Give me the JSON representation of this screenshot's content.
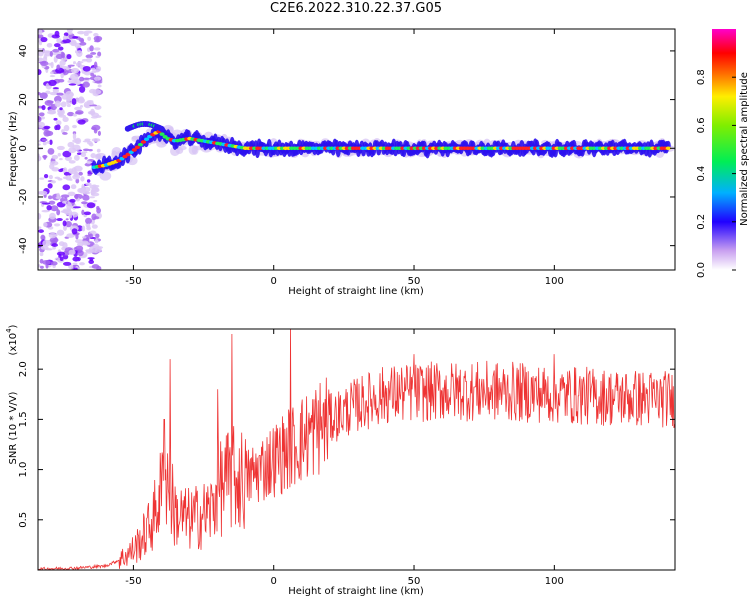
{
  "title": "C2E6.2022.310.22.37.G05",
  "chart_data": [
    {
      "type": "heatmap",
      "xlabel": "Height of straight line (km)",
      "ylabel": "Frequency (Hz)",
      "xlim": [
        -84,
        143
      ],
      "ylim": [
        -50,
        49
      ],
      "xticks": [
        -50,
        0,
        50,
        100
      ],
      "yticks": [
        -40,
        -20,
        0,
        20,
        40
      ],
      "ridge": {
        "description": "dominant frequency track",
        "x": [
          -65,
          -60,
          -55,
          -50,
          -47,
          -44,
          -41,
          -38,
          -35,
          -30,
          -25,
          -20,
          -15,
          -10,
          0,
          50,
          100,
          141
        ],
        "y": [
          -8,
          -7,
          -5,
          -1,
          2,
          5,
          7,
          4,
          3,
          4,
          3,
          2,
          1,
          0,
          0,
          0,
          0,
          0
        ]
      },
      "colorbar": {
        "label": "Normalized spectral amplitude",
        "ticks": [
          0.0,
          0.2,
          0.4,
          0.6,
          0.8
        ],
        "tick_labels": [
          "0.0",
          "0.2",
          "0.4",
          "0.6",
          "0.8"
        ],
        "range": [
          0,
          1
        ]
      }
    },
    {
      "type": "line",
      "xlabel": "Height of straight line (km)",
      "ylabel": "SNR (10 * V/V)",
      "multiplier": "(x10",
      "multiplier_exp": "4",
      "multiplier_close": ")",
      "xlim": [
        -84,
        143
      ],
      "ylim": [
        0,
        2.4
      ],
      "xticks": [
        -50,
        0,
        50,
        100
      ],
      "yticks": [
        0.5,
        1.0,
        1.5,
        2.0
      ],
      "ytick_labels": [
        "0.5",
        "1.0",
        "1.5",
        "2.0"
      ],
      "series": [
        {
          "name": "SNR",
          "color": "#ee3333",
          "envelope_x": [
            -84,
            -70,
            -60,
            -55,
            -50,
            -46,
            -43,
            -40,
            -38,
            -35,
            -30,
            -25,
            -22,
            -20,
            -18,
            -15,
            -12,
            -10,
            -5,
            0,
            5,
            10,
            20,
            30,
            40,
            60,
            80,
            100,
            120,
            143
          ],
          "envelope_y": [
            0.01,
            0.02,
            0.04,
            0.1,
            0.2,
            0.35,
            0.5,
            0.8,
            0.9,
            0.55,
            0.5,
            0.55,
            0.6,
            0.8,
            0.85,
            0.9,
            0.9,
            0.9,
            1.0,
            1.1,
            1.2,
            1.3,
            1.5,
            1.65,
            1.75,
            1.78,
            1.78,
            1.75,
            1.72,
            1.7
          ],
          "peaks": [
            {
              "x": -37,
              "y": 2.1
            },
            {
              "x": -39,
              "y": 1.5
            },
            {
              "x": -20,
              "y": 1.8
            },
            {
              "x": -15,
              "y": 2.35
            },
            {
              "x": 6,
              "y": 2.45
            },
            {
              "x": 50,
              "y": 2.15
            },
            {
              "x": 100,
              "y": 2.15
            }
          ]
        }
      ]
    }
  ]
}
